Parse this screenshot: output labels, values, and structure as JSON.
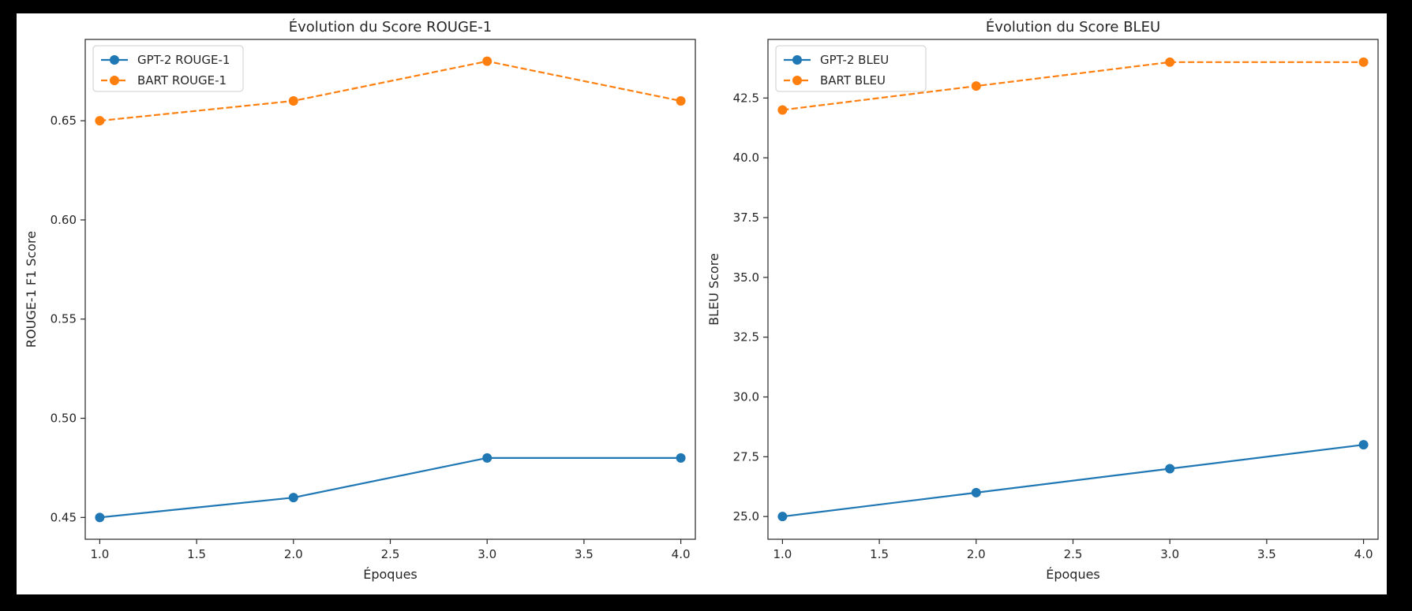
{
  "colors": {
    "gpt2": "#1f77b4",
    "bart": "#ff7f0e",
    "axis": "#262626",
    "legend_border": "#cccccc",
    "figure_bg": "#ffffff",
    "frame": "#000000"
  },
  "chart_data": [
    {
      "type": "line",
      "title": "Évolution du Score ROUGE-1",
      "xlabel": "Époques",
      "ylabel": "ROUGE-1 F1 Score",
      "xlim": [
        0.925,
        4.075
      ],
      "ylim": [
        0.439,
        0.691
      ],
      "xticks": [
        1.0,
        1.5,
        2.0,
        2.5,
        3.0,
        3.5,
        4.0
      ],
      "xtick_labels": [
        "1.0",
        "1.5",
        "2.0",
        "2.5",
        "3.0",
        "3.5",
        "4.0"
      ],
      "yticks": [
        0.45,
        0.5,
        0.55,
        0.6,
        0.65
      ],
      "ytick_labels": [
        "0.45",
        "0.50",
        "0.55",
        "0.60",
        "0.65"
      ],
      "grid": false,
      "legend": "top-left",
      "series": [
        {
          "name": "GPT-2 ROUGE-1",
          "color_key": "gpt2",
          "style": "solid",
          "marker": "o",
          "x": [
            1,
            2,
            3,
            4
          ],
          "y": [
            0.45,
            0.46,
            0.48,
            0.48
          ]
        },
        {
          "name": "BART ROUGE-1",
          "color_key": "bart",
          "style": "dashed",
          "marker": "o",
          "x": [
            1,
            2,
            3,
            4
          ],
          "y": [
            0.65,
            0.66,
            0.68,
            0.66
          ]
        }
      ]
    },
    {
      "type": "line",
      "title": "Évolution du Score BLEU",
      "xlabel": "Époques",
      "ylabel": "BLEU Score",
      "xlim": [
        0.925,
        4.075
      ],
      "ylim": [
        24.05,
        44.95
      ],
      "xticks": [
        1.0,
        1.5,
        2.0,
        2.5,
        3.0,
        3.5,
        4.0
      ],
      "xtick_labels": [
        "1.0",
        "1.5",
        "2.0",
        "2.5",
        "3.0",
        "3.5",
        "4.0"
      ],
      "yticks": [
        25.0,
        27.5,
        30.0,
        32.5,
        35.0,
        37.5,
        40.0,
        42.5
      ],
      "ytick_labels": [
        "25.0",
        "27.5",
        "30.0",
        "32.5",
        "35.0",
        "37.5",
        "40.0",
        "42.5"
      ],
      "grid": false,
      "legend": "top-left",
      "series": [
        {
          "name": "GPT-2 BLEU",
          "color_key": "gpt2",
          "style": "solid",
          "marker": "o",
          "x": [
            1,
            2,
            3,
            4
          ],
          "y": [
            25,
            26,
            27,
            28
          ]
        },
        {
          "name": "BART BLEU",
          "color_key": "bart",
          "style": "dashed",
          "marker": "o",
          "x": [
            1,
            2,
            3,
            4
          ],
          "y": [
            42,
            43,
            44,
            44
          ]
        }
      ]
    }
  ]
}
